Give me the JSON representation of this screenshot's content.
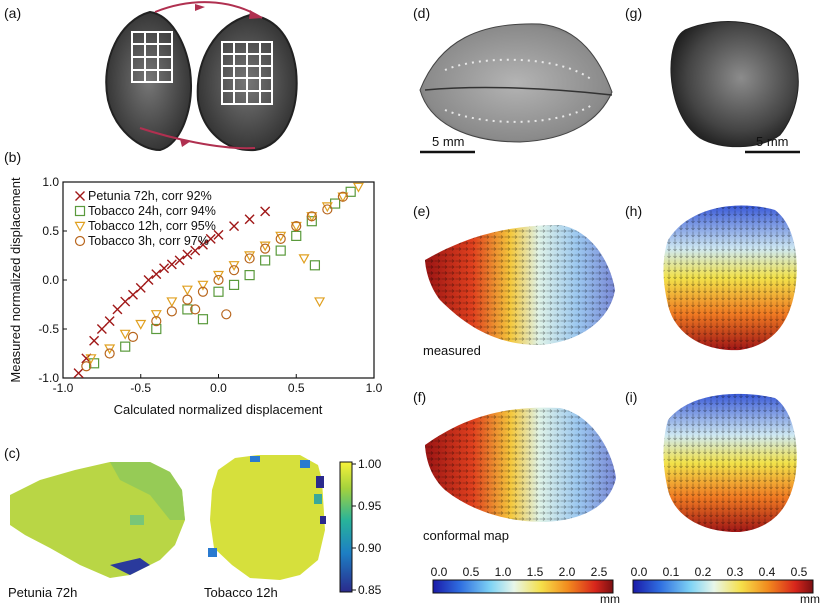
{
  "panels": {
    "a": "(a)",
    "b": "(b)",
    "c": "(c)",
    "d": "(d)",
    "e": "(e)",
    "f": "(f)",
    "g": "(g)",
    "h": "(h)",
    "i": "(i)"
  },
  "scale_bars": {
    "d": "5 mm",
    "g": "5 mm"
  },
  "captions": {
    "e": "measured",
    "f": "conformal map",
    "c_left": "Petunia 72h",
    "c_right": "Tobacco 12h"
  },
  "colorbar_c": {
    "ticks": [
      "1.00",
      "0.95",
      "0.90",
      "0.85"
    ]
  },
  "colorbar_left": {
    "ticks": [
      "0.0",
      "0.5",
      "1.0",
      "1.5",
      "2.0",
      "2.5"
    ],
    "unit": "mm"
  },
  "colorbar_right": {
    "ticks": [
      "0.0",
      "0.1",
      "0.2",
      "0.3",
      "0.4",
      "0.5"
    ],
    "unit": "mm"
  },
  "colors": {
    "petunia": "#a01818",
    "tobacco24": "#5a9a3c",
    "tobacco12": "#e0a020",
    "tobacco3": "#b8661e",
    "arrow_a": "#b03050"
  },
  "chart_data": {
    "type": "scatter",
    "title": "",
    "xlabel": "Calculated normalized displacement",
    "ylabel": "Measured normalized displacement",
    "xlim": [
      -1.0,
      1.0
    ],
    "ylim": [
      -1.0,
      1.0
    ],
    "xticks": [
      "-1.0",
      "-0.5",
      "0.0",
      "0.5",
      "1.0"
    ],
    "yticks": [
      "1.0",
      "0.5",
      "0.0",
      "-0.5",
      "-1.0"
    ],
    "legend_position": "top-left",
    "series": [
      {
        "name": "Petunia 72h, corr 92%",
        "marker": "x",
        "color": "#a01818",
        "points": [
          [
            -0.9,
            -0.95
          ],
          [
            -0.85,
            -0.8
          ],
          [
            -0.8,
            -0.62
          ],
          [
            -0.75,
            -0.5
          ],
          [
            -0.7,
            -0.42
          ],
          [
            -0.65,
            -0.3
          ],
          [
            -0.6,
            -0.22
          ],
          [
            -0.55,
            -0.15
          ],
          [
            -0.5,
            -0.08
          ],
          [
            -0.45,
            0.0
          ],
          [
            -0.4,
            0.06
          ],
          [
            -0.35,
            0.12
          ],
          [
            -0.3,
            0.16
          ],
          [
            -0.25,
            0.2
          ],
          [
            -0.2,
            0.26
          ],
          [
            -0.15,
            0.3
          ],
          [
            -0.1,
            0.36
          ],
          [
            -0.05,
            0.42
          ],
          [
            0.0,
            0.46
          ],
          [
            0.1,
            0.55
          ],
          [
            0.2,
            0.62
          ],
          [
            0.3,
            0.7
          ]
        ]
      },
      {
        "name": "Tobacco 24h, corr 94%",
        "marker": "square",
        "color": "#5a9a3c",
        "points": [
          [
            -0.8,
            -0.85
          ],
          [
            -0.6,
            -0.68
          ],
          [
            -0.4,
            -0.5
          ],
          [
            -0.2,
            -0.3
          ],
          [
            -0.1,
            -0.4
          ],
          [
            0.0,
            -0.12
          ],
          [
            0.1,
            -0.05
          ],
          [
            0.2,
            0.05
          ],
          [
            0.3,
            0.2
          ],
          [
            0.4,
            0.3
          ],
          [
            0.5,
            0.45
          ],
          [
            0.6,
            0.6
          ],
          [
            0.62,
            0.15
          ],
          [
            0.75,
            0.78
          ],
          [
            0.85,
            0.9
          ]
        ]
      },
      {
        "name": "Tobacco 12h, corr 95%",
        "marker": "triangle-down",
        "color": "#e0a020",
        "points": [
          [
            -0.82,
            -0.8
          ],
          [
            -0.7,
            -0.7
          ],
          [
            -0.6,
            -0.55
          ],
          [
            -0.5,
            -0.45
          ],
          [
            -0.4,
            -0.35
          ],
          [
            -0.3,
            -0.22
          ],
          [
            -0.2,
            -0.1
          ],
          [
            -0.1,
            -0.05
          ],
          [
            0.0,
            0.05
          ],
          [
            0.1,
            0.15
          ],
          [
            0.2,
            0.25
          ],
          [
            0.3,
            0.35
          ],
          [
            0.4,
            0.45
          ],
          [
            0.5,
            0.55
          ],
          [
            0.55,
            0.22
          ],
          [
            0.6,
            0.65
          ],
          [
            0.65,
            -0.22
          ],
          [
            0.7,
            0.75
          ],
          [
            0.8,
            0.85
          ],
          [
            0.9,
            0.95
          ]
        ]
      },
      {
        "name": "Tobacco 3h, corr 97%",
        "marker": "circle",
        "color": "#b8661e",
        "points": [
          [
            -0.85,
            -0.88
          ],
          [
            -0.7,
            -0.75
          ],
          [
            -0.55,
            -0.58
          ],
          [
            -0.4,
            -0.42
          ],
          [
            -0.3,
            -0.32
          ],
          [
            -0.2,
            -0.2
          ],
          [
            -0.15,
            -0.3
          ],
          [
            -0.1,
            -0.12
          ],
          [
            0.0,
            0.0
          ],
          [
            0.05,
            -0.35
          ],
          [
            0.1,
            0.1
          ],
          [
            0.2,
            0.22
          ],
          [
            0.3,
            0.32
          ],
          [
            0.4,
            0.42
          ],
          [
            0.5,
            0.55
          ],
          [
            0.6,
            0.65
          ],
          [
            0.7,
            0.72
          ],
          [
            0.8,
            0.85
          ]
        ]
      }
    ]
  }
}
